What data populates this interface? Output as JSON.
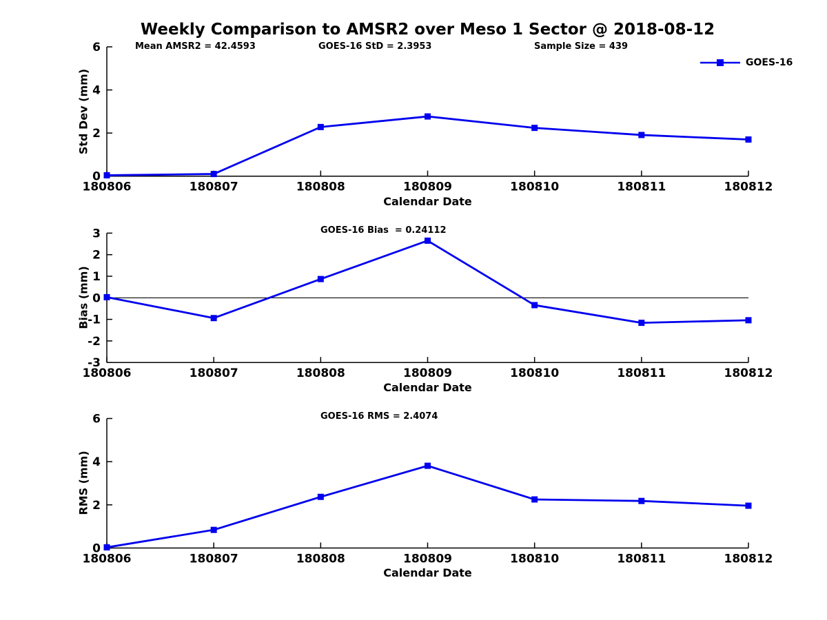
{
  "title": "Weekly Comparison to AMSR2 over Meso 1 Sector @ 2018-08-12",
  "annotations": {
    "mean_amsr2": "Mean AMSR2 = 42.4593",
    "goes16_std": "GOES-16 StD = 2.3953",
    "sample_size": "Sample Size = 439"
  },
  "legend": {
    "label": "GOES-16",
    "position": "top-right",
    "marker": "filled-square-on-line"
  },
  "colors": {
    "line": "#0000ee",
    "axis": "#000000",
    "text": "#000000",
    "background": "#ffffff"
  },
  "chart_data": [
    {
      "type": "line",
      "subplot": "std-dev",
      "categories": [
        "180806",
        "180807",
        "180808",
        "180809",
        "180810",
        "180811",
        "180812"
      ],
      "series": [
        {
          "name": "GOES-16",
          "values": [
            0.04,
            0.1,
            2.28,
            2.77,
            2.24,
            1.91,
            1.7
          ]
        }
      ],
      "annotation": "",
      "xlabel": "Calendar Date",
      "ylabel": "Std Dev (mm)",
      "ylim": [
        0,
        6
      ],
      "yticks": [
        0,
        2,
        4,
        6
      ],
      "zero_line": false,
      "grid": false,
      "marker": "square"
    },
    {
      "type": "line",
      "subplot": "bias",
      "categories": [
        "180806",
        "180807",
        "180808",
        "180809",
        "180810",
        "180811",
        "180812"
      ],
      "series": [
        {
          "name": "GOES-16",
          "values": [
            0.03,
            -0.94,
            0.87,
            2.65,
            -0.34,
            -1.16,
            -1.04
          ]
        }
      ],
      "annotation": "GOES-16 Bias  = 0.24112",
      "xlabel": "Calendar Date",
      "ylabel": "Bias (mm)",
      "ylim": [
        -3,
        3
      ],
      "yticks": [
        -3,
        -2,
        -1,
        0,
        1,
        2,
        3
      ],
      "zero_line": true,
      "grid": false,
      "marker": "square"
    },
    {
      "type": "line",
      "subplot": "rms",
      "categories": [
        "180806",
        "180807",
        "180808",
        "180809",
        "180810",
        "180811",
        "180812"
      ],
      "series": [
        {
          "name": "GOES-16",
          "values": [
            0.03,
            0.84,
            2.37,
            3.81,
            2.25,
            2.18,
            1.96
          ]
        }
      ],
      "annotation": "GOES-16 RMS = 2.4074",
      "xlabel": "Calendar Date",
      "ylabel": "RMS (mm)",
      "ylim": [
        0,
        6
      ],
      "yticks": [
        0,
        2,
        4,
        6
      ],
      "zero_line": false,
      "grid": false,
      "marker": "square"
    }
  ]
}
